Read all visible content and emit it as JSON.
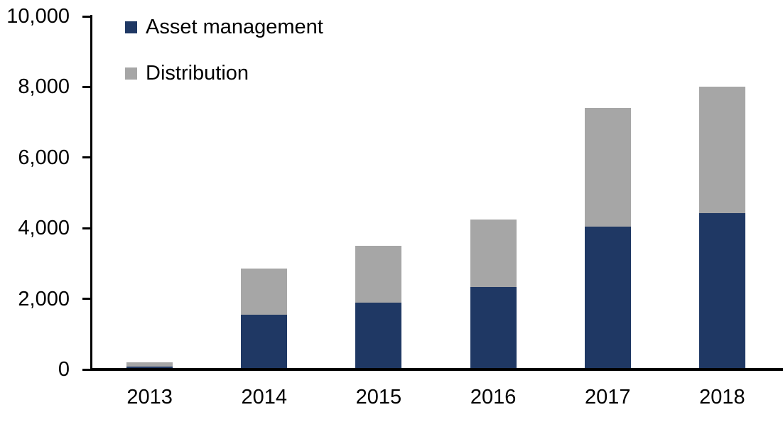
{
  "chart_data": {
    "type": "bar",
    "stacked": true,
    "title": "",
    "xlabel": "",
    "ylabel": "",
    "categories": [
      "2013",
      "2014",
      "2015",
      "2016",
      "2017",
      "2018"
    ],
    "series": [
      {
        "name": "Asset management",
        "color": "#1F3864",
        "values": [
          90,
          1550,
          1900,
          2330,
          4050,
          4430
        ]
      },
      {
        "name": "Distribution",
        "color": "#A6A6A6",
        "values": [
          110,
          1300,
          1600,
          1920,
          3350,
          3570
        ]
      }
    ],
    "totals": [
      200,
      2850,
      3500,
      4250,
      7400,
      8000
    ],
    "ylim": [
      0,
      10000
    ],
    "ytick_step": 2000,
    "ytick_labels": [
      "0",
      "2,000",
      "4,000",
      "6,000",
      "8,000",
      "10,000"
    ],
    "grid": false,
    "legend_position": "top-left-inside"
  },
  "colors": {
    "axis": "#000000",
    "text": "#000000",
    "background": "#FFFFFF",
    "asset_management": "#1F3864",
    "distribution": "#A6A6A6"
  }
}
